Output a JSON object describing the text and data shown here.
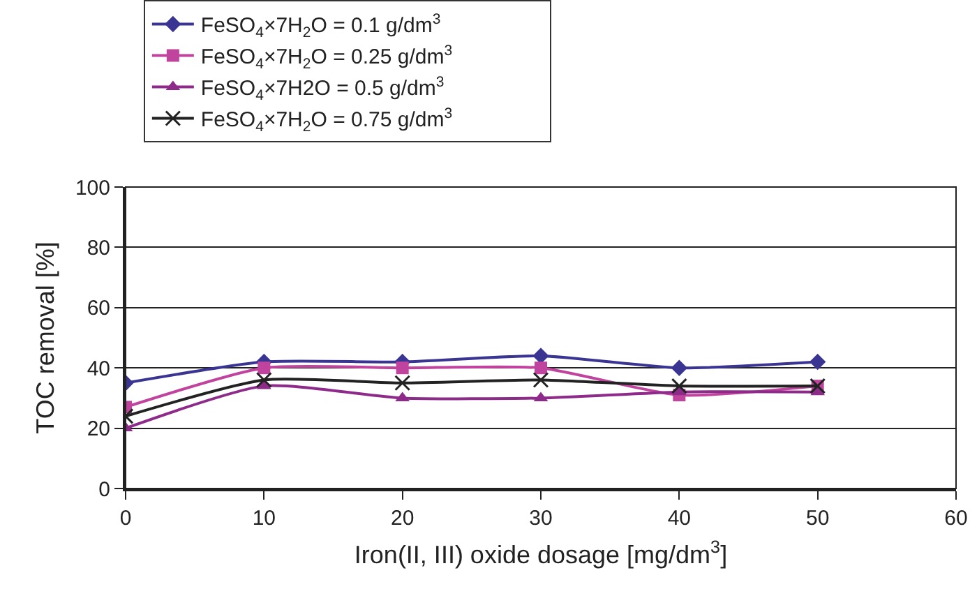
{
  "chart_data": {
    "type": "line",
    "xlabel": "Iron(II, III) oxide dosage [mg/dm$^{3}$]",
    "ylabel": "TOC removal [%]",
    "x": [
      0,
      10,
      20,
      30,
      40,
      50
    ],
    "series": [
      {
        "name": "FeSO$_{4}$×7H$_{2}$O = 0.1 g/dm$^{3}$",
        "color": "#3a3592",
        "marker": "diamond",
        "values": [
          35,
          42,
          42,
          44,
          40,
          42
        ]
      },
      {
        "name": "FeSO$_{4}$×7H$_{2}$O = 0.25 g/dm$^{3}$",
        "color": "#c0449e",
        "marker": "square",
        "values": [
          27,
          40,
          40,
          40,
          31,
          34
        ]
      },
      {
        "name": "FeSO$_{4}$×7H2O = 0.5 g/dm$^{3}$",
        "color": "#8e2a8a",
        "marker": "triangle",
        "values": [
          20,
          34,
          30,
          30,
          32,
          32
        ]
      },
      {
        "name": "FeSO$_{4}$×7H$_{2}$O = 0.75 g/dm$^{3}$",
        "color": "#222222",
        "marker": "cross",
        "values": [
          24,
          36,
          35,
          36,
          34,
          34
        ]
      }
    ],
    "xlim": [
      0,
      60
    ],
    "xticks": [
      0,
      10,
      20,
      30,
      40,
      50,
      60
    ],
    "ylim": [
      0,
      100
    ],
    "yticks": [
      0,
      20,
      40,
      60,
      80,
      100
    ],
    "grid": "y",
    "legend": "top",
    "line_style": "solid"
  }
}
